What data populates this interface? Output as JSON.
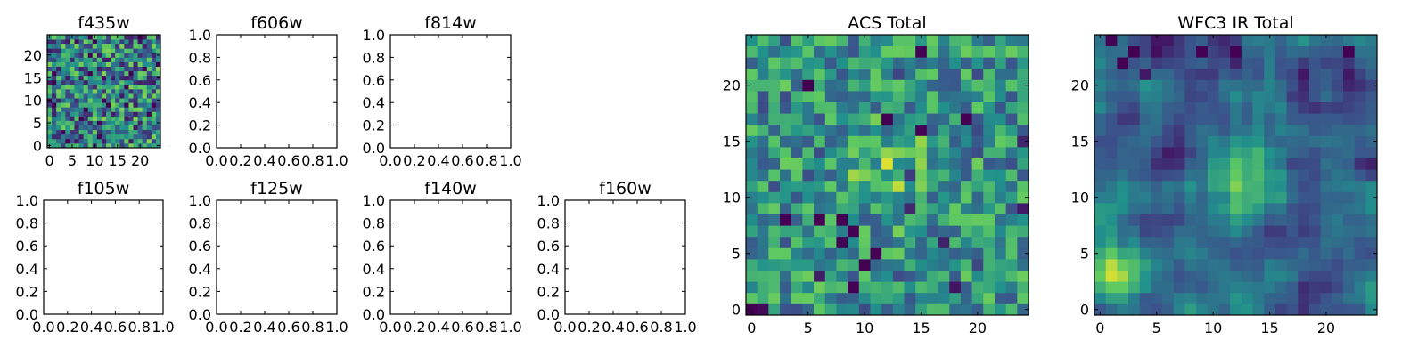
{
  "chart_data": [
    {
      "type": "heatmap",
      "title": "f435w",
      "grid": false,
      "xlim": [
        -0.5,
        24.5
      ],
      "ylim": [
        -0.5,
        24.5
      ],
      "xticks": [
        0,
        5,
        10,
        15,
        20
      ],
      "yticks": [
        0,
        5,
        10,
        15,
        20
      ],
      "empty": false,
      "style": "noisy"
    },
    {
      "type": "heatmap",
      "title": "f606w",
      "grid": false,
      "xlim": [
        0,
        1
      ],
      "ylim": [
        0,
        1
      ],
      "xticks": [
        "0.0",
        "0.2",
        "0.4",
        "0.6",
        "0.8",
        "1.0"
      ],
      "yticks": [
        "0.0",
        "0.2",
        "0.4",
        "0.6",
        "0.8",
        "1.0"
      ],
      "empty": true
    },
    {
      "type": "heatmap",
      "title": "f814w",
      "grid": false,
      "xlim": [
        0,
        1
      ],
      "ylim": [
        0,
        1
      ],
      "xticks": [
        "0.0",
        "0.2",
        "0.4",
        "0.6",
        "0.8",
        "1.0"
      ],
      "yticks": [
        "0.0",
        "0.2",
        "0.4",
        "0.6",
        "0.8",
        "1.0"
      ],
      "empty": true
    },
    {
      "type": "heatmap",
      "title": "f105w",
      "grid": false,
      "xlim": [
        0,
        1
      ],
      "ylim": [
        0,
        1
      ],
      "xticks": [
        "0.0",
        "0.2",
        "0.4",
        "0.6",
        "0.8",
        "1.0"
      ],
      "yticks": [
        "0.0",
        "0.2",
        "0.4",
        "0.6",
        "0.8",
        "1.0"
      ],
      "empty": true
    },
    {
      "type": "heatmap",
      "title": "f125w",
      "grid": false,
      "xlim": [
        0,
        1
      ],
      "ylim": [
        0,
        1
      ],
      "xticks": [
        "0.0",
        "0.2",
        "0.4",
        "0.6",
        "0.8",
        "1.0"
      ],
      "yticks": [
        "0.0",
        "0.2",
        "0.4",
        "0.6",
        "0.8",
        "1.0"
      ],
      "empty": true
    },
    {
      "type": "heatmap",
      "title": "f140w",
      "grid": false,
      "xlim": [
        0,
        1
      ],
      "ylim": [
        0,
        1
      ],
      "xticks": [
        "0.0",
        "0.2",
        "0.4",
        "0.6",
        "0.8",
        "1.0"
      ],
      "yticks": [
        "0.0",
        "0.2",
        "0.4",
        "0.6",
        "0.8",
        "1.0"
      ],
      "empty": true
    },
    {
      "type": "heatmap",
      "title": "f160w",
      "grid": false,
      "xlim": [
        0,
        1
      ],
      "ylim": [
        0,
        1
      ],
      "xticks": [
        "0.0",
        "0.2",
        "0.4",
        "0.6",
        "0.8",
        "1.0"
      ],
      "yticks": [
        "0.0",
        "0.2",
        "0.4",
        "0.6",
        "0.8",
        "1.0"
      ],
      "empty": true
    },
    {
      "type": "heatmap",
      "title": "ACS Total",
      "grid": false,
      "xlim": [
        -0.5,
        24.5
      ],
      "ylim": [
        -0.5,
        24.5
      ],
      "xticks": [
        0,
        5,
        10,
        15,
        20
      ],
      "yticks": [
        0,
        5,
        10,
        15,
        20
      ],
      "empty": false,
      "style": "noisy-blob",
      "blob": {
        "x": 12.5,
        "y": 12,
        "sigma": 2.5,
        "amplitude": 0.25
      }
    },
    {
      "type": "heatmap",
      "title": "WFC3 IR Total",
      "grid": false,
      "xlim": [
        -0.5,
        24.5
      ],
      "ylim": [
        -0.5,
        24.5
      ],
      "xticks": [
        0,
        5,
        10,
        15,
        20
      ],
      "yticks": [
        0,
        5,
        10,
        15,
        20
      ],
      "empty": false,
      "style": "smooth-blobs",
      "blobs": [
        {
          "x": 12.5,
          "y": 12,
          "sigma": 2.2,
          "amplitude": 0.45
        },
        {
          "x": 1,
          "y": 3.5,
          "sigma": 1.6,
          "amplitude": 0.65
        }
      ]
    }
  ],
  "colors": {
    "colormap": "viridis",
    "viridis_stops": [
      "#440154",
      "#3b528b",
      "#21918c",
      "#5ec962",
      "#fde725"
    ]
  }
}
